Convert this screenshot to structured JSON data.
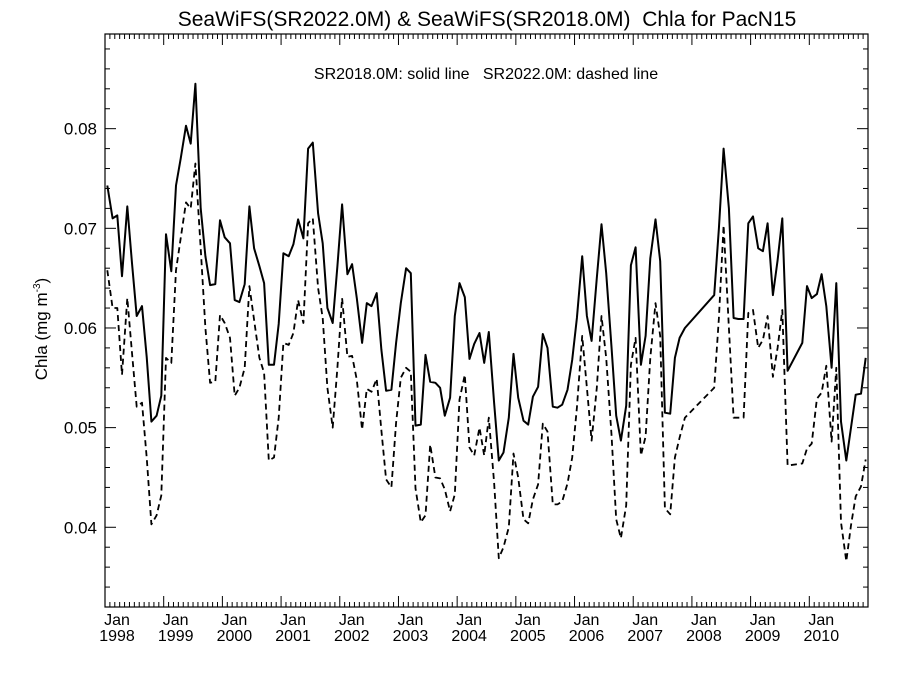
{
  "chart_data": {
    "type": "line",
    "title": "SeaWiFS(SR2022.0M) & SeaWiFS(SR2018.0M)  Chla for PacN15",
    "annotation": "SR2018.0M: solid line   SR2022.0M: dashed line",
    "xlabel": "",
    "ylabel_main": "Chla (mg m",
    "ylabel_sup": "-3",
    "ylabel_close": ")",
    "xlim": [
      1998.0,
      2011.0
    ],
    "ylim": [
      0.032,
      0.0895
    ],
    "yticks": [
      0.04,
      0.05,
      0.06,
      0.07,
      0.08
    ],
    "ytick_labels": [
      "0.04",
      "0.05",
      "0.06",
      "0.07",
      "0.08"
    ],
    "xtick_month_labels": [
      "Jan",
      "Jan",
      "Jan",
      "Jan",
      "Jan",
      "Jan",
      "Jan",
      "Jan",
      "Jan",
      "Jan",
      "Jan",
      "Jan",
      "Jan"
    ],
    "xtick_year_labels": [
      "1998",
      "1999",
      "2000",
      "2001",
      "2002",
      "2003",
      "2004",
      "2005",
      "2006",
      "2007",
      "2008",
      "2009",
      "2010"
    ],
    "grid": false,
    "series": [
      {
        "name": "SR2018.0M",
        "style": "solid",
        "color": "#000000",
        "x": [
          1998.04,
          1998.13,
          1998.21,
          1998.29,
          1998.38,
          1998.46,
          1998.54,
          1998.63,
          1998.71,
          1998.79,
          1998.88,
          1998.96,
          1999.04,
          1999.13,
          1999.21,
          1999.29,
          1999.38,
          1999.46,
          1999.54,
          1999.63,
          1999.71,
          1999.79,
          1999.88,
          1999.96,
          2000.04,
          2000.13,
          2000.21,
          2000.29,
          2000.38,
          2000.46,
          2000.54,
          2000.63,
          2000.71,
          2000.79,
          2000.88,
          2000.96,
          2001.04,
          2001.13,
          2001.21,
          2001.29,
          2001.38,
          2001.46,
          2001.54,
          2001.63,
          2001.71,
          2001.79,
          2001.88,
          2001.96,
          2002.04,
          2002.13,
          2002.21,
          2002.29,
          2002.38,
          2002.46,
          2002.54,
          2002.63,
          2002.71,
          2002.79,
          2002.88,
          2002.96,
          2003.04,
          2003.13,
          2003.21,
          2003.29,
          2003.38,
          2003.46,
          2003.54,
          2003.63,
          2003.71,
          2003.79,
          2003.88,
          2003.96,
          2004.04,
          2004.13,
          2004.21,
          2004.29,
          2004.38,
          2004.46,
          2004.54,
          2004.63,
          2004.71,
          2004.79,
          2004.88,
          2004.96,
          2005.04,
          2005.13,
          2005.21,
          2005.29,
          2005.38,
          2005.46,
          2005.54,
          2005.63,
          2005.71,
          2005.79,
          2005.88,
          2005.96,
          2006.04,
          2006.13,
          2006.21,
          2006.29,
          2006.38,
          2006.46,
          2006.54,
          2006.63,
          2006.71,
          2006.79,
          2006.88,
          2006.96,
          2007.04,
          2007.13,
          2007.21,
          2007.29,
          2007.38,
          2007.46,
          2007.54,
          2007.63,
          2007.71,
          2007.79,
          2007.88,
          2008.38,
          2008.46,
          2008.54,
          2008.63,
          2008.71,
          2008.79,
          2008.88,
          2008.96,
          2009.04,
          2009.13,
          2009.21,
          2009.29,
          2009.38,
          2009.46,
          2009.54,
          2009.63,
          2009.88,
          2009.96,
          2010.04,
          2010.13,
          2010.21,
          2010.29,
          2010.38,
          2010.46,
          2010.54,
          2010.63,
          2010.71,
          2010.79,
          2010.88,
          2010.96
        ],
        "y": [
          0.0743,
          0.071,
          0.0713,
          0.0652,
          0.0722,
          0.0665,
          0.0612,
          0.0622,
          0.0571,
          0.0506,
          0.0512,
          0.0532,
          0.0694,
          0.0657,
          0.0743,
          0.077,
          0.0803,
          0.0785,
          0.0845,
          0.072,
          0.0672,
          0.0643,
          0.0644,
          0.0708,
          0.0691,
          0.0685,
          0.0628,
          0.0626,
          0.0644,
          0.0722,
          0.068,
          0.0662,
          0.0645,
          0.0563,
          0.0563,
          0.0604,
          0.0675,
          0.0672,
          0.0684,
          0.0709,
          0.069,
          0.078,
          0.0786,
          0.0715,
          0.0685,
          0.062,
          0.0605,
          0.0662,
          0.0724,
          0.0654,
          0.0664,
          0.063,
          0.0585,
          0.0625,
          0.0622,
          0.0635,
          0.0578,
          0.0537,
          0.0538,
          0.0585,
          0.0625,
          0.066,
          0.0655,
          0.0502,
          0.0503,
          0.0573,
          0.0546,
          0.0545,
          0.054,
          0.0512,
          0.053,
          0.0612,
          0.0645,
          0.0631,
          0.0569,
          0.0584,
          0.0595,
          0.0565,
          0.0596,
          0.0525,
          0.0467,
          0.0475,
          0.051,
          0.0574,
          0.053,
          0.0507,
          0.0503,
          0.0531,
          0.0541,
          0.0594,
          0.058,
          0.0521,
          0.052,
          0.0523,
          0.0538,
          0.0568,
          0.061,
          0.0672,
          0.0612,
          0.0587,
          0.065,
          0.0704,
          0.0655,
          0.0581,
          0.0512,
          0.0487,
          0.0522,
          0.0663,
          0.0681,
          0.0563,
          0.0592,
          0.067,
          0.0709,
          0.0667,
          0.0515,
          0.0514,
          0.057,
          0.059,
          0.06,
          0.0633,
          0.07,
          0.078,
          0.072,
          0.061,
          0.0609,
          0.0609,
          0.0705,
          0.0712,
          0.068,
          0.0677,
          0.0705,
          0.0633,
          0.0668,
          0.071,
          0.0557,
          0.0585,
          0.0642,
          0.063,
          0.0634,
          0.0654,
          0.0622,
          0.056,
          0.0645,
          0.0506,
          0.0467,
          0.05,
          0.0533,
          0.0534,
          0.057
        ]
      },
      {
        "name": "SR2022.0M",
        "style": "dashed",
        "color": "#000000",
        "x": [
          1998.04,
          1998.13,
          1998.21,
          1998.29,
          1998.38,
          1998.46,
          1998.54,
          1998.63,
          1998.71,
          1998.79,
          1998.88,
          1998.96,
          1999.04,
          1999.13,
          1999.21,
          1999.29,
          1999.38,
          1999.46,
          1999.54,
          1999.63,
          1999.71,
          1999.79,
          1999.88,
          1999.96,
          2000.04,
          2000.13,
          2000.21,
          2000.29,
          2000.38,
          2000.46,
          2000.54,
          2000.63,
          2000.71,
          2000.79,
          2000.88,
          2000.96,
          2001.04,
          2001.13,
          2001.21,
          2001.29,
          2001.38,
          2001.46,
          2001.54,
          2001.63,
          2001.71,
          2001.79,
          2001.88,
          2001.96,
          2002.04,
          2002.13,
          2002.21,
          2002.29,
          2002.38,
          2002.46,
          2002.54,
          2002.63,
          2002.71,
          2002.79,
          2002.88,
          2002.96,
          2003.04,
          2003.13,
          2003.21,
          2003.29,
          2003.38,
          2003.46,
          2003.54,
          2003.63,
          2003.71,
          2003.79,
          2003.88,
          2003.96,
          2004.04,
          2004.13,
          2004.21,
          2004.29,
          2004.38,
          2004.46,
          2004.54,
          2004.63,
          2004.71,
          2004.79,
          2004.88,
          2004.96,
          2005.04,
          2005.13,
          2005.21,
          2005.29,
          2005.38,
          2005.46,
          2005.54,
          2005.63,
          2005.71,
          2005.79,
          2005.88,
          2005.96,
          2006.04,
          2006.13,
          2006.21,
          2006.29,
          2006.38,
          2006.46,
          2006.54,
          2006.63,
          2006.71,
          2006.79,
          2006.88,
          2006.96,
          2007.04,
          2007.13,
          2007.21,
          2007.29,
          2007.38,
          2007.46,
          2007.54,
          2007.63,
          2007.71,
          2007.79,
          2007.88,
          2008.38,
          2008.46,
          2008.54,
          2008.63,
          2008.71,
          2008.79,
          2008.88,
          2008.96,
          2009.04,
          2009.13,
          2009.21,
          2009.29,
          2009.38,
          2009.46,
          2009.54,
          2009.63,
          2009.88,
          2009.96,
          2010.04,
          2010.13,
          2010.21,
          2010.29,
          2010.38,
          2010.46,
          2010.54,
          2010.63,
          2010.71,
          2010.79,
          2010.88,
          2010.96
        ],
        "y": [
          0.0658,
          0.062,
          0.062,
          0.0553,
          0.063,
          0.0575,
          0.0521,
          0.0525,
          0.047,
          0.0403,
          0.0412,
          0.0432,
          0.057,
          0.0565,
          0.0658,
          0.069,
          0.0726,
          0.072,
          0.0765,
          0.068,
          0.06,
          0.0545,
          0.0546,
          0.0613,
          0.0605,
          0.059,
          0.0532,
          0.054,
          0.056,
          0.0642,
          0.0608,
          0.057,
          0.0555,
          0.0467,
          0.047,
          0.051,
          0.0585,
          0.0583,
          0.0595,
          0.0628,
          0.0605,
          0.0705,
          0.071,
          0.064,
          0.061,
          0.054,
          0.05,
          0.056,
          0.063,
          0.0571,
          0.0572,
          0.0548,
          0.0498,
          0.0539,
          0.0536,
          0.0549,
          0.0497,
          0.0448,
          0.044,
          0.0505,
          0.055,
          0.056,
          0.0556,
          0.0439,
          0.0405,
          0.0412,
          0.0483,
          0.045,
          0.0449,
          0.0438,
          0.0416,
          0.0433,
          0.0528,
          0.0553,
          0.048,
          0.0472,
          0.05,
          0.0472,
          0.051,
          0.0445,
          0.0369,
          0.038,
          0.04,
          0.0474,
          0.045,
          0.0408,
          0.0404,
          0.0428,
          0.0443,
          0.0504,
          0.0496,
          0.0423,
          0.0423,
          0.0426,
          0.0444,
          0.047,
          0.052,
          0.0592,
          0.054,
          0.0487,
          0.054,
          0.0612,
          0.057,
          0.0493,
          0.0408,
          0.0389,
          0.0422,
          0.0563,
          0.059,
          0.0472,
          0.0491,
          0.057,
          0.0625,
          0.0592,
          0.0419,
          0.0413,
          0.047,
          0.049,
          0.051,
          0.054,
          0.061,
          0.0703,
          0.06,
          0.051,
          0.051,
          0.051,
          0.0615,
          0.0618,
          0.058,
          0.0588,
          0.0612,
          0.0551,
          0.058,
          0.0618,
          0.0462,
          0.0464,
          0.0479,
          0.0484,
          0.0529,
          0.0535,
          0.0562,
          0.0486,
          0.056,
          0.0405,
          0.0366,
          0.0402,
          0.0431,
          0.0441,
          0.0468
        ]
      }
    ]
  }
}
